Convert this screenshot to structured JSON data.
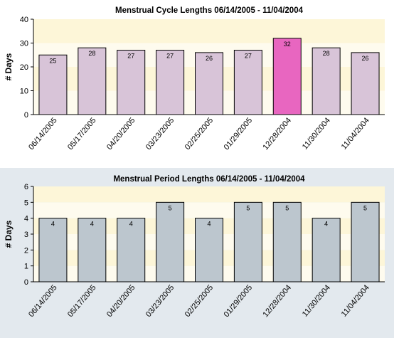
{
  "chart_data": [
    {
      "type": "bar",
      "title": "Menstrual Cycle Lengths 06/14/2005 - 11/04/2004",
      "xlabel": "",
      "ylabel": "# Days",
      "ylim": [
        0,
        40
      ],
      "yticks": [
        0,
        10,
        20,
        30,
        40
      ],
      "grid": false,
      "categories": [
        "06/14/2005",
        "05/17/2005",
        "04/20/2005",
        "03/23/2005",
        "02/25/2005",
        "01/29/2005",
        "12/28/2004",
        "11/30/2004",
        "11/04/2004"
      ],
      "values": [
        25,
        28,
        27,
        27,
        26,
        27,
        32,
        28,
        26
      ],
      "highlight_index": 6,
      "colors": {
        "bar": "#d8c4d8",
        "highlight": "#e866c0",
        "band": "#fdf6d8",
        "band_alt": "#fefbee"
      }
    },
    {
      "type": "bar",
      "title": "Menstrual Period Lengths 06/14/2005 - 11/04/2004",
      "xlabel": "",
      "ylabel": "# Days",
      "ylim": [
        0,
        6
      ],
      "yticks": [
        0,
        1,
        2,
        3,
        4,
        5,
        6
      ],
      "grid": false,
      "categories": [
        "06/14/2005",
        "05/17/2005",
        "04/20/2005",
        "03/23/2005",
        "02/25/2005",
        "01/29/2005",
        "12/28/2004",
        "11/30/2004",
        "11/04/2004"
      ],
      "values": [
        4,
        4,
        4,
        5,
        4,
        5,
        5,
        4,
        5
      ],
      "highlight_index": null,
      "colors": {
        "bar": "#bcc6ce",
        "highlight": "#bcc6ce",
        "band": "#fdf6d8",
        "band_alt": "#fefbee"
      }
    }
  ]
}
